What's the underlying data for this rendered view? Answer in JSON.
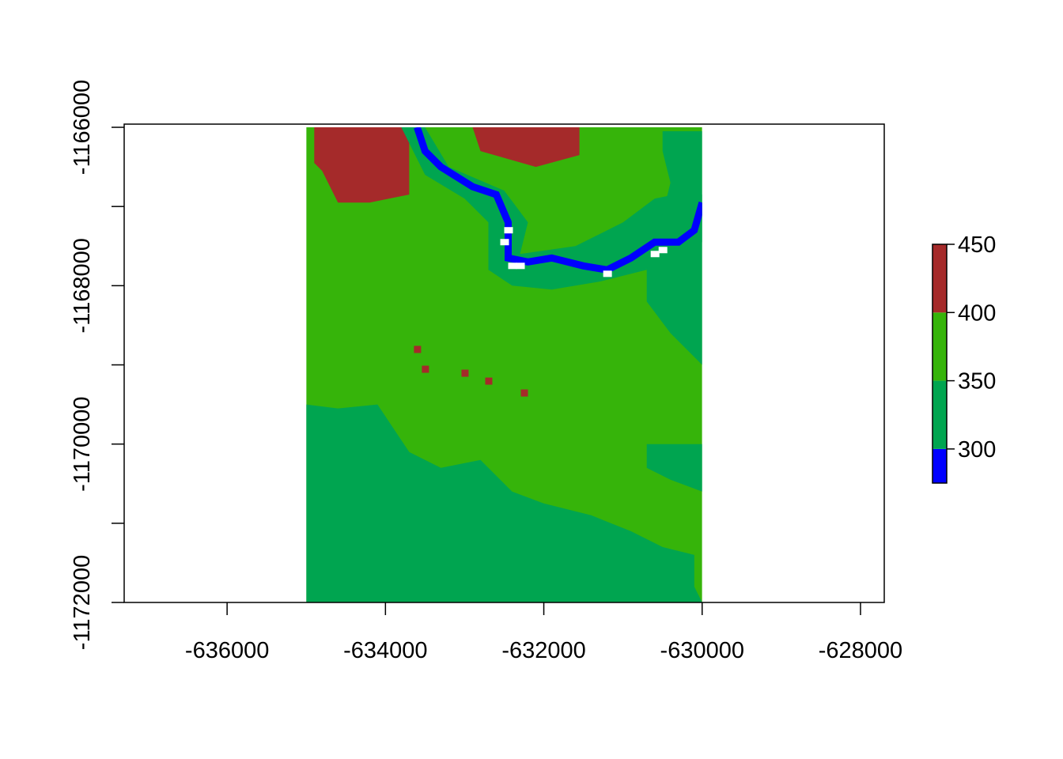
{
  "chart_data": {
    "type": "heatmap",
    "title": "",
    "xlabel": "",
    "ylabel": "",
    "xlim": [
      -637300,
      -627700
    ],
    "ylim": [
      -1172000,
      -1165960
    ],
    "raster_extent": {
      "x": [
        -635000,
        -630000
      ],
      "y": [
        -1172000,
        -1166000
      ]
    },
    "x_ticks": [
      -636000,
      -634000,
      -632000,
      -630000,
      -628000
    ],
    "y_ticks": [
      -1166000,
      -1167000,
      -1168000,
      -1169000,
      -1170000,
      -1171000,
      -1172000
    ],
    "x_tick_labels": [
      "-636000",
      "-634000",
      "-632000",
      "-630000",
      "-628000"
    ],
    "y_tick_labels": [
      "-1166000",
      "",
      "-1168000",
      "",
      "-1170000",
      "",
      "-1172000"
    ],
    "legend": {
      "position": "right",
      "range": [
        275,
        450
      ],
      "breaks": [
        275,
        300,
        350,
        400,
        450
      ],
      "colors": [
        "#0000ff",
        "#00a550",
        "#36b40a",
        "#a52a2a"
      ],
      "tick_values": [
        300,
        350,
        400,
        450
      ],
      "tick_labels": [
        "300",
        "350",
        "400",
        "450"
      ]
    },
    "zones": [
      {
        "id": "north-west high",
        "class": 4,
        "color": "#a52a2a",
        "approx_value": 430,
        "polygon": [
          [
            -634900,
            -1166000
          ],
          [
            -633700,
            -1166000
          ],
          [
            -633700,
            -1166850
          ],
          [
            -634200,
            -1166950
          ],
          [
            -634600,
            -1166950
          ],
          [
            -634800,
            -1166550
          ],
          [
            -634900,
            -1166450
          ]
        ]
      },
      {
        "id": "north high",
        "class": 4,
        "color": "#a52a2a",
        "approx_value": 430,
        "polygon": [
          [
            -632900,
            -1166000
          ],
          [
            -631550,
            -1166000
          ],
          [
            -631550,
            -1166350
          ],
          [
            -632100,
            -1166500
          ],
          [
            -632800,
            -1166300
          ]
        ]
      },
      {
        "id": "river corridor",
        "class": 2,
        "color": "#00a550",
        "approx_value": 330,
        "polygon": [
          [
            -633800,
            -1166000
          ],
          [
            -633500,
            -1166000
          ],
          [
            -633200,
            -1166500
          ],
          [
            -632500,
            -1166800
          ],
          [
            -632200,
            -1167200
          ],
          [
            -632300,
            -1167600
          ],
          [
            -631600,
            -1167500
          ],
          [
            -631000,
            -1167200
          ],
          [
            -630600,
            -1166900
          ],
          [
            -630350,
            -1166850
          ],
          [
            -630000,
            -1166850
          ],
          [
            -630000,
            -1167450
          ],
          [
            -630300,
            -1167650
          ],
          [
            -630700,
            -1167800
          ],
          [
            -631300,
            -1167950
          ],
          [
            -631900,
            -1168050
          ],
          [
            -632400,
            -1168000
          ],
          [
            -632700,
            -1167800
          ],
          [
            -632700,
            -1167200
          ],
          [
            -633000,
            -1166900
          ],
          [
            -633500,
            -1166600
          ]
        ]
      },
      {
        "id": "north-east lowland",
        "class": 2,
        "color": "#00a550",
        "approx_value": 340,
        "polygon": [
          [
            -630500,
            -1166050
          ],
          [
            -630000,
            -1166050
          ],
          [
            -630000,
            -1169000
          ],
          [
            -630400,
            -1168600
          ],
          [
            -630700,
            -1168200
          ],
          [
            -630700,
            -1167800
          ],
          [
            -630500,
            -1167100
          ],
          [
            -630400,
            -1166700
          ],
          [
            -630500,
            -1166300
          ]
        ]
      },
      {
        "id": "south lowland",
        "class": 2,
        "color": "#00a550",
        "approx_value": 330,
        "polygon": [
          [
            -635000,
            -1169500
          ],
          [
            -634600,
            -1169550
          ],
          [
            -634100,
            -1169500
          ],
          [
            -633700,
            -1170100
          ],
          [
            -633300,
            -1170300
          ],
          [
            -632800,
            -1170200
          ],
          [
            -632400,
            -1170600
          ],
          [
            -632000,
            -1170750
          ],
          [
            -631400,
            -1170900
          ],
          [
            -630900,
            -1171100
          ],
          [
            -630500,
            -1171300
          ],
          [
            -630100,
            -1171400
          ],
          [
            -630100,
            -1171800
          ],
          [
            -630000,
            -1172000
          ],
          [
            -635000,
            -1172000
          ]
        ]
      },
      {
        "id": "east lowland",
        "class": 2,
        "color": "#00a550",
        "approx_value": 335,
        "polygon": [
          [
            -630700,
            -1170000
          ],
          [
            -630000,
            -1170000
          ],
          [
            -630000,
            -1170600
          ],
          [
            -630400,
            -1170450
          ],
          [
            -630700,
            -1170300
          ]
        ]
      },
      {
        "id": "river channel",
        "class": 1,
        "color": "#0000ff",
        "approx_value": 290,
        "line": [
          [
            -633600,
            -1166000
          ],
          [
            -633500,
            -1166300
          ],
          [
            -633300,
            -1166500
          ],
          [
            -632900,
            -1166750
          ],
          [
            -632600,
            -1166850
          ],
          [
            -632450,
            -1167200
          ],
          [
            -632450,
            -1167650
          ],
          [
            -632200,
            -1167700
          ],
          [
            -631900,
            -1167650
          ],
          [
            -631500,
            -1167750
          ],
          [
            -631200,
            -1167800
          ],
          [
            -630900,
            -1167650
          ],
          [
            -630600,
            -1167450
          ],
          [
            -630300,
            -1167450
          ],
          [
            -630100,
            -1167300
          ],
          [
            -630000,
            -1166950
          ]
        ]
      },
      {
        "id": "pond 1",
        "class": 4,
        "color": "#a52a2a",
        "approx_value": 420,
        "point": [
          -633600,
          -1168800
        ]
      },
      {
        "id": "pond 2",
        "class": 4,
        "color": "#a52a2a",
        "approx_value": 420,
        "point": [
          -633500,
          -1169050
        ]
      },
      {
        "id": "pond 3",
        "class": 4,
        "color": "#a52a2a",
        "approx_value": 420,
        "point": [
          -633000,
          -1169100
        ]
      },
      {
        "id": "pond 4",
        "class": 4,
        "color": "#a52a2a",
        "approx_value": 420,
        "point": [
          -632700,
          -1169200
        ]
      },
      {
        "id": "pond 5",
        "class": 4,
        "color": "#a52a2a",
        "approx_value": 420,
        "point": [
          -632250,
          -1169350
        ]
      }
    ],
    "nodata_cells": [
      [
        -632450,
        -1167300
      ],
      [
        -632500,
        -1167450
      ],
      [
        -632400,
        -1167750
      ],
      [
        -632300,
        -1167750
      ],
      [
        -631200,
        -1167850
      ],
      [
        -630600,
        -1167600
      ],
      [
        -630500,
        -1167550
      ]
    ]
  }
}
